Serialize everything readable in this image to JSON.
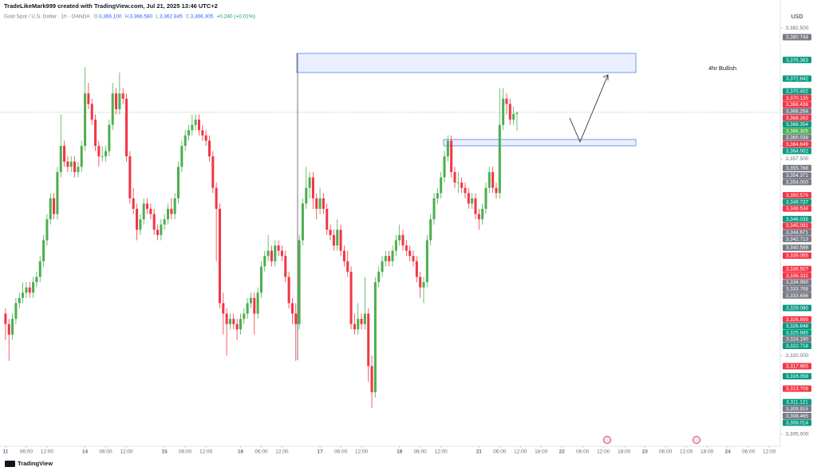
{
  "chart_data": {
    "type": "candlestick",
    "title": "TradeLikeMark999 created with TradingView.com, Jul 21, 2025 13:46 UTC+2",
    "symbol": "Gold Spot / U.S. Dollar · 1h · OANDA",
    "header": [
      {
        "key": "O",
        "value": "3,366.100"
      },
      {
        "key": "H",
        "value": "3,366.580"
      },
      {
        "key": "L",
        "value": "3,362.845"
      },
      {
        "key": "C",
        "value": "3,366.305"
      }
    ],
    "change": "+0.240 (+0.01%)",
    "currency": "USD",
    "annotation": "4hr Bullish",
    "brand": "TradingView",
    "up_color": "#4caf50",
    "down_color": "#f23645",
    "ylim": [
      3303,
      3385.7
    ],
    "xlim": [
      -1.6,
      224.2
    ],
    "yticks": [
      {
        "value": 3382.5,
        "label": "3,382.500"
      },
      {
        "value": 3360,
        "label": "3,360.000"
      },
      {
        "value": 3357.5,
        "label": "3,357.500"
      },
      {
        "value": 3320,
        "label": "3,320.000"
      },
      {
        "value": 3305,
        "label": "3,305.000"
      }
    ],
    "xticks": [
      {
        "value": 0,
        "label": "11"
      },
      {
        "value": 6,
        "label": "06:00"
      },
      {
        "value": 12,
        "label": "12:00"
      },
      {
        "value": 23,
        "label": "14"
      },
      {
        "value": 29,
        "label": "06:00"
      },
      {
        "value": 35,
        "label": "12:00"
      },
      {
        "value": 46,
        "label": "15"
      },
      {
        "value": 52,
        "label": "06:00"
      },
      {
        "value": 58,
        "label": "12:00"
      },
      {
        "value": 68,
        "label": "16"
      },
      {
        "value": 74,
        "label": "06:00"
      },
      {
        "value": 80,
        "label": "12:00"
      },
      {
        "value": 91,
        "label": "17"
      },
      {
        "value": 97,
        "label": "06:00"
      },
      {
        "value": 103,
        "label": "12:00"
      },
      {
        "value": 114,
        "label": "18"
      },
      {
        "value": 120,
        "label": "06:00"
      },
      {
        "value": 126,
        "label": "12:00"
      },
      {
        "value": 137,
        "label": "21"
      },
      {
        "value": 143,
        "label": "06:00"
      },
      {
        "value": 149,
        "label": "12:00"
      },
      {
        "value": 155,
        "label": "18:00"
      },
      {
        "value": 161,
        "label": "22"
      },
      {
        "value": 167,
        "label": "06:00"
      },
      {
        "value": 173,
        "label": "12:00"
      },
      {
        "value": 179,
        "label": "18:00"
      },
      {
        "value": 185,
        "label": "23"
      },
      {
        "value": 191,
        "label": "06:00"
      },
      {
        "value": 197,
        "label": "12:00"
      },
      {
        "value": 203,
        "label": "18:00"
      },
      {
        "value": 209,
        "label": "24"
      },
      {
        "value": 215,
        "label": "06:00"
      },
      {
        "value": 221,
        "label": "12:00"
      }
    ],
    "price_labels": [
      {
        "value": 3380.744,
        "label": "3,380.744",
        "color": "#787b86"
      },
      {
        "value": 3376.383,
        "label": "3,376.383",
        "color": "#089981"
      },
      {
        "value": 3372.842,
        "label": "3,372.842",
        "color": "#089981"
      },
      {
        "value": 3370.402,
        "label": "3,370.402",
        "color": "#089981"
      },
      {
        "value": 3370.135,
        "label": "3,370.135",
        "color": "#f23645"
      },
      {
        "value": 3368.436,
        "label": "3,368.436",
        "color": "#f23645"
      },
      {
        "value": 3368.264,
        "label": "3,368.264",
        "color": "#787b86"
      },
      {
        "value": 3368.263,
        "label": "3,368.263",
        "color": "#f23645"
      },
      {
        "value": 3366.354,
        "label": "3,366.354",
        "color": "#089981"
      },
      {
        "value": 3366.305,
        "label": "3,366.305",
        "color": "#4caf50"
      },
      {
        "value": 3365.038,
        "label": "3,365.038",
        "color": "#787b86"
      },
      {
        "value": 3364.649,
        "label": "3,364.649",
        "color": "#f23645"
      },
      {
        "value": 3364.002,
        "label": "3,364.002",
        "color": "#089981"
      },
      {
        "value": 3355.768,
        "label": "3,355.768",
        "color": "#787b86"
      },
      {
        "value": 3354.371,
        "label": "3,354.371",
        "color": "#787b86"
      },
      {
        "value": 3354.0,
        "label": "3,354.000",
        "color": "#787b86"
      },
      {
        "value": 3350.576,
        "label": "3,350.576",
        "color": "#f23645"
      },
      {
        "value": 3349.737,
        "label": "3,349.737",
        "color": "#089981"
      },
      {
        "value": 3348.534,
        "label": "3,348.534",
        "color": "#f23645"
      },
      {
        "value": 3346.035,
        "label": "3,346.035",
        "color": "#089981"
      },
      {
        "value": 3345.091,
        "label": "3,345.091",
        "color": "#f23645"
      },
      {
        "value": 3344.671,
        "label": "3,344.671",
        "color": "#787b86"
      },
      {
        "value": 3342.713,
        "label": "3,342.713",
        "color": "#787b86"
      },
      {
        "value": 3340.588,
        "label": "3,340.588",
        "color": "#787b86"
      },
      {
        "value": 3339.066,
        "label": "3,339.066",
        "color": "#f23645"
      },
      {
        "value": 3336.507,
        "label": "3,336.507",
        "color": "#f23645"
      },
      {
        "value": 3336.332,
        "label": "3,336.332",
        "color": "#f23645"
      },
      {
        "value": 3334.99,
        "label": "3,334.990",
        "color": "#787b86"
      },
      {
        "value": 3333.768,
        "label": "3,333.768",
        "color": "#787b86"
      },
      {
        "value": 3333.696,
        "label": "3,333.696",
        "color": "#787b86"
      },
      {
        "value": 3329.08,
        "label": "3,329.080",
        "color": "#089981"
      },
      {
        "value": 3326.899,
        "label": "3,326.899",
        "color": "#f23645"
      },
      {
        "value": 3326.848,
        "label": "3,326.848",
        "color": "#089981"
      },
      {
        "value": 3325.685,
        "label": "3,325.685",
        "color": "#089981"
      },
      {
        "value": 3324.19,
        "label": "3,324.190",
        "color": "#787b86"
      },
      {
        "value": 3322.718,
        "label": "3,322.718",
        "color": "#089981"
      },
      {
        "value": 3317.965,
        "label": "3,317.965",
        "color": "#f23645"
      },
      {
        "value": 3316.058,
        "label": "3,316.058",
        "color": "#089981"
      },
      {
        "value": 3313.708,
        "label": "3,313.708",
        "color": "#f23645"
      },
      {
        "value": 3311.121,
        "label": "3,311.121",
        "color": "#089981"
      },
      {
        "value": 3309.915,
        "label": "3,309.915",
        "color": "#787b86"
      },
      {
        "value": 3308.465,
        "label": "3,308.465",
        "color": "#787b86"
      },
      {
        "value": 3308.014,
        "label": "3,308.014",
        "color": "#089981"
      }
    ],
    "ohlc": [
      [
        3328,
        3329,
        3323,
        3326
      ],
      [
        3326,
        3327,
        3319,
        3324
      ],
      [
        3324,
        3328,
        3323,
        3327
      ],
      [
        3327,
        3331,
        3326,
        3330
      ],
      [
        3330,
        3332,
        3329,
        3331
      ],
      [
        3331,
        3334,
        3330,
        3332
      ],
      [
        3332,
        3334,
        3331,
        3333
      ],
      [
        3333,
        3334,
        3331,
        3332
      ],
      [
        3332,
        3335,
        3331,
        3334
      ],
      [
        3334,
        3336,
        3333,
        3335
      ],
      [
        3335,
        3339,
        3334,
        3338
      ],
      [
        3338,
        3343,
        3337,
        3342
      ],
      [
        3342,
        3347,
        3341,
        3346
      ],
      [
        3346,
        3351,
        3345,
        3350
      ],
      [
        3350,
        3351,
        3346,
        3347
      ],
      [
        3347,
        3356,
        3346,
        3355
      ],
      [
        3355,
        3366,
        3354,
        3360
      ],
      [
        3360,
        3361,
        3356,
        3357
      ],
      [
        3357,
        3358,
        3355,
        3356
      ],
      [
        3356,
        3358,
        3355,
        3357
      ],
      [
        3357,
        3358,
        3354,
        3355
      ],
      [
        3355,
        3357,
        3354,
        3356
      ],
      [
        3356,
        3361,
        3355,
        3360
      ],
      [
        3360,
        3375,
        3359,
        3370
      ],
      [
        3370,
        3372,
        3367,
        3368
      ],
      [
        3368,
        3369,
        3364,
        3365
      ],
      [
        3365,
        3366,
        3359,
        3360
      ],
      [
        3360,
        3361,
        3356,
        3358
      ],
      [
        3358,
        3360,
        3357,
        3358
      ],
      [
        3358,
        3360,
        3357,
        3359
      ],
      [
        3359,
        3365,
        3358,
        3364
      ],
      [
        3364,
        3372,
        3363,
        3370
      ],
      [
        3370,
        3371,
        3366,
        3367
      ],
      [
        3367,
        3374,
        3366,
        3370
      ],
      [
        3370,
        3371,
        3368,
        3369
      ],
      [
        3369,
        3370,
        3357,
        3358
      ],
      [
        3358,
        3359,
        3349,
        3350
      ],
      [
        3350,
        3352,
        3347,
        3348
      ],
      [
        3348,
        3349,
        3342,
        3344
      ],
      [
        3344,
        3347,
        3343,
        3346
      ],
      [
        3346,
        3350,
        3345,
        3349
      ],
      [
        3349,
        3350,
        3347,
        3348
      ],
      [
        3348,
        3349,
        3346,
        3347
      ],
      [
        3347,
        3348,
        3343,
        3344
      ],
      [
        3344,
        3345,
        3342,
        3343
      ],
      [
        3343,
        3346,
        3342,
        3345
      ],
      [
        3345,
        3347,
        3344,
        3346
      ],
      [
        3346,
        3349,
        3345,
        3348
      ],
      [
        3348,
        3350,
        3346,
        3347
      ],
      [
        3347,
        3351,
        3346,
        3350
      ],
      [
        3350,
        3357,
        3349,
        3356
      ],
      [
        3356,
        3361,
        3355,
        3360
      ],
      [
        3360,
        3363,
        3359,
        3362
      ],
      [
        3362,
        3364,
        3361,
        3363
      ],
      [
        3363,
        3366,
        3362,
        3364
      ],
      [
        3364,
        3366,
        3363,
        3365
      ],
      [
        3365,
        3366,
        3362,
        3363
      ],
      [
        3363,
        3364,
        3361,
        3362
      ],
      [
        3362,
        3363,
        3360,
        3361
      ],
      [
        3361,
        3362,
        3357,
        3358
      ],
      [
        3358,
        3359,
        3351,
        3352
      ],
      [
        3352,
        3353,
        3338,
        3348
      ],
      [
        3348,
        3349,
        3329,
        3330
      ],
      [
        3330,
        3332,
        3324,
        3328
      ],
      [
        3328,
        3329,
        3320,
        3326
      ],
      [
        3326,
        3328,
        3325,
        3327
      ],
      [
        3327,
        3328,
        3325,
        3326
      ],
      [
        3326,
        3327,
        3323,
        3325
      ],
      [
        3325,
        3328,
        3324,
        3327
      ],
      [
        3327,
        3329,
        3326,
        3328
      ],
      [
        3328,
        3331,
        3327,
        3330
      ],
      [
        3330,
        3332,
        3329,
        3331
      ],
      [
        3331,
        3332,
        3324,
        3328
      ],
      [
        3328,
        3333,
        3327,
        3332
      ],
      [
        3332,
        3338,
        3331,
        3337
      ],
      [
        3337,
        3340,
        3336,
        3339
      ],
      [
        3339,
        3343,
        3338,
        3340
      ],
      [
        3340,
        3341,
        3337,
        3338
      ],
      [
        3338,
        3342,
        3337,
        3341
      ],
      [
        3341,
        3342,
        3339,
        3340
      ],
      [
        3340,
        3341,
        3338,
        3339
      ],
      [
        3339,
        3340,
        3334,
        3335
      ],
      [
        3335,
        3336,
        3329,
        3330
      ],
      [
        3330,
        3331,
        3326,
        3328
      ],
      [
        3328,
        3330,
        3319,
        3326
      ],
      [
        3326,
        3343,
        3325,
        3342
      ],
      [
        3342,
        3350,
        3341,
        3349
      ],
      [
        3349,
        3356,
        3348,
        3352
      ],
      [
        3352,
        3355,
        3350,
        3354
      ],
      [
        3354,
        3355,
        3348,
        3350
      ],
      [
        3350,
        3351,
        3346,
        3348
      ],
      [
        3348,
        3352,
        3347,
        3350
      ],
      [
        3350,
        3351,
        3347,
        3348
      ],
      [
        3348,
        3349,
        3343,
        3344
      ],
      [
        3344,
        3345,
        3342,
        3343
      ],
      [
        3343,
        3344,
        3340,
        3341
      ],
      [
        3341,
        3346,
        3340,
        3344
      ],
      [
        3344,
        3345,
        3339,
        3340
      ],
      [
        3340,
        3341,
        3337,
        3338
      ],
      [
        3338,
        3340,
        3335,
        3336
      ],
      [
        3336,
        3337,
        3325,
        3326
      ],
      [
        3326,
        3328,
        3324,
        3325
      ],
      [
        3325,
        3330,
        3324,
        3327
      ],
      [
        3327,
        3328,
        3325,
        3326
      ],
      [
        3326,
        3335,
        3325,
        3328
      ],
      [
        3328,
        3329,
        3315,
        3318
      ],
      [
        3318,
        3320,
        3310,
        3313
      ],
      [
        3313,
        3335,
        3312,
        3334
      ],
      [
        3334,
        3337,
        3333,
        3336
      ],
      [
        3336,
        3339,
        3335,
        3338
      ],
      [
        3338,
        3340,
        3337,
        3339
      ],
      [
        3339,
        3340,
        3337,
        3338
      ],
      [
        3338,
        3341,
        3337,
        3340
      ],
      [
        3340,
        3343,
        3339,
        3342
      ],
      [
        3342,
        3345,
        3341,
        3343
      ],
      [
        3343,
        3344,
        3340,
        3341
      ],
      [
        3341,
        3342,
        3339,
        3340
      ],
      [
        3340,
        3341,
        3338,
        3339
      ],
      [
        3339,
        3340,
        3337,
        3338
      ],
      [
        3338,
        3339,
        3334,
        3335
      ],
      [
        3335,
        3336,
        3331,
        3333
      ],
      [
        3333,
        3335,
        3330,
        3334
      ],
      [
        3334,
        3343,
        3333,
        3342
      ],
      [
        3342,
        3347,
        3341,
        3346
      ],
      [
        3346,
        3351,
        3345,
        3350
      ],
      [
        3350,
        3352,
        3349,
        3351
      ],
      [
        3351,
        3355,
        3350,
        3354
      ],
      [
        3354,
        3359,
        3353,
        3358
      ],
      [
        3358,
        3362,
        3357,
        3361
      ],
      [
        3361,
        3362,
        3354,
        3355
      ],
      [
        3355,
        3356,
        3352,
        3353
      ],
      [
        3353,
        3355,
        3351,
        3353
      ],
      [
        3353,
        3354,
        3351,
        3352
      ],
      [
        3352,
        3353,
        3350,
        3351
      ],
      [
        3351,
        3352,
        3348,
        3349
      ],
      [
        3349,
        3351,
        3348,
        3350
      ],
      [
        3350,
        3351,
        3346,
        3347
      ],
      [
        3347,
        3348,
        3344,
        3346
      ],
      [
        3346,
        3349,
        3345,
        3348
      ],
      [
        3348,
        3353,
        3347,
        3352
      ],
      [
        3352,
        3356,
        3351,
        3355
      ],
      [
        3355,
        3356,
        3351,
        3352
      ],
      [
        3352,
        3353,
        3350,
        3351
      ],
      [
        3351,
        3371,
        3350,
        3364
      ],
      [
        3364,
        3371,
        3363,
        3369
      ],
      [
        3369,
        3370,
        3366,
        3368
      ],
      [
        3368,
        3369,
        3364,
        3365
      ],
      [
        3365,
        3367.5,
        3364,
        3366.1
      ],
      [
        3366.1,
        3366.58,
        3362.845,
        3366.305
      ]
    ]
  }
}
